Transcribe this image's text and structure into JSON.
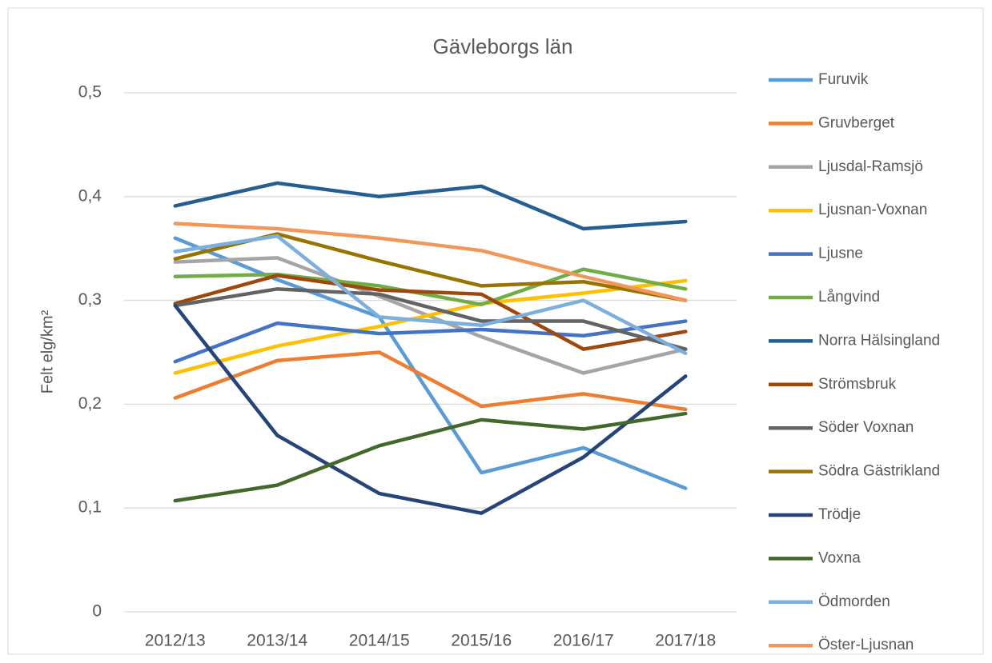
{
  "chart_data": {
    "type": "line",
    "title": "Gävleborgs län",
    "y_label": "Felt elg/km²",
    "categories": [
      "2012/13",
      "2013/14",
      "2014/15",
      "2015/16",
      "2016/17",
      "2017/18"
    ],
    "ylim": [
      0,
      0.5
    ],
    "yticks": [
      0,
      {
        "value": 0.1,
        "label": "0,1"
      },
      {
        "value": 0.2,
        "label": "0,2"
      },
      {
        "value": 0.3,
        "label": "0,3"
      },
      {
        "value": 0.4,
        "label": "0,4"
      },
      {
        "value": 0.5,
        "label": "0,5"
      }
    ],
    "grid": true,
    "legend": "right",
    "series": [
      {
        "name": "Furuvik",
        "color": "#5B9BD5",
        "values": [
          0.36,
          0.32,
          0.284,
          0.134,
          0.158,
          0.119
        ]
      },
      {
        "name": "Gruvberget",
        "color": "#ED7D31",
        "values": [
          0.206,
          0.242,
          0.25,
          0.198,
          0.21,
          0.195
        ]
      },
      {
        "name": "Ljusdal-Ramsjö",
        "color": "#A5A5A5",
        "values": [
          0.337,
          0.341,
          0.304,
          0.265,
          0.23,
          0.253
        ]
      },
      {
        "name": "Ljusnan-Voxnan",
        "color": "#FFC000",
        "values": [
          0.23,
          0.256,
          0.275,
          0.297,
          0.307,
          0.319
        ]
      },
      {
        "name": "Ljusne",
        "color": "#4472C4",
        "values": [
          0.241,
          0.278,
          0.268,
          0.272,
          0.266,
          0.28
        ]
      },
      {
        "name": "Långvind",
        "color": "#70AD47",
        "values": [
          0.323,
          0.325,
          0.314,
          0.296,
          0.33,
          0.311
        ]
      },
      {
        "name": "Norra Hälsingland",
        "color": "#255E91",
        "values": [
          0.391,
          0.413,
          0.4,
          0.41,
          0.369,
          0.376
        ]
      },
      {
        "name": "Strömsbruk",
        "color": "#9E480E",
        "values": [
          0.297,
          0.324,
          0.31,
          0.306,
          0.253,
          0.27
        ]
      },
      {
        "name": "Söder Voxnan",
        "color": "#636363",
        "values": [
          0.295,
          0.311,
          0.306,
          0.28,
          0.28,
          0.253
        ]
      },
      {
        "name": "Södra Gästrikland",
        "color": "#997300",
        "values": [
          0.34,
          0.364,
          0.338,
          0.314,
          0.318,
          0.3
        ]
      },
      {
        "name": "Trödje",
        "color": "#264478",
        "values": [
          0.295,
          0.17,
          0.114,
          0.095,
          0.149,
          0.227
        ]
      },
      {
        "name": "Voxna",
        "color": "#43682B",
        "values": [
          0.107,
          0.122,
          0.16,
          0.185,
          0.176,
          0.191
        ]
      },
      {
        "name": "Ödmorden",
        "color": "#7CAFDD",
        "values": [
          0.347,
          0.362,
          0.284,
          0.276,
          0.3,
          0.249
        ]
      },
      {
        "name": "Öster-Ljusnan",
        "color": "#F1975A",
        "values": [
          0.374,
          0.369,
          0.36,
          0.348,
          0.323,
          0.3
        ]
      }
    ]
  }
}
